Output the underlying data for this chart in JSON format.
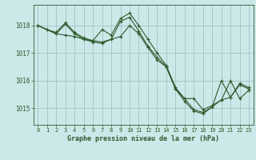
{
  "title": "Graphe pression niveau de la mer (hPa)",
  "background_color": "#cce8e8",
  "grid_color": "#9bbcbc",
  "line_color": "#2d5a2d",
  "xlim": [
    -0.5,
    23.5
  ],
  "ylim": [
    1014.4,
    1018.75
  ],
  "yticks": [
    1015,
    1016,
    1017,
    1018
  ],
  "xticks": [
    0,
    1,
    2,
    3,
    4,
    5,
    6,
    7,
    8,
    9,
    10,
    11,
    12,
    13,
    14,
    15,
    16,
    17,
    18,
    19,
    20,
    21,
    22,
    23
  ],
  "line1_x": [
    0,
    1,
    2,
    3,
    4,
    5,
    6,
    7,
    8,
    9,
    10,
    11,
    12,
    13,
    14,
    15,
    16,
    17,
    18,
    19,
    20,
    21,
    22,
    23
  ],
  "line1_y": [
    1018.0,
    1017.85,
    1017.75,
    1018.1,
    1017.75,
    1017.55,
    1017.45,
    1017.85,
    1017.65,
    1018.25,
    1018.45,
    1018.0,
    1017.5,
    1017.0,
    1016.55,
    1015.75,
    1015.35,
    1014.95,
    1014.85,
    1015.05,
    1016.0,
    1015.4,
    1015.9,
    1015.75
  ],
  "line2_x": [
    0,
    1,
    2,
    3,
    4,
    5,
    6,
    7,
    8,
    9,
    10,
    11,
    12,
    13,
    14,
    15,
    16,
    17,
    18,
    19,
    20,
    21,
    22,
    23
  ],
  "line2_y": [
    1018.0,
    1017.85,
    1017.7,
    1018.05,
    1017.7,
    1017.5,
    1017.4,
    1017.35,
    1017.5,
    1018.15,
    1018.3,
    1017.8,
    1017.25,
    1016.85,
    1016.5,
    1015.7,
    1015.25,
    1014.9,
    1014.8,
    1015.05,
    1015.3,
    1015.4,
    1015.85,
    1015.7
  ],
  "line3_x": [
    0,
    2,
    3,
    4,
    5,
    6,
    7,
    8,
    9,
    10,
    11,
    12,
    13,
    14,
    15,
    16,
    17,
    18,
    19,
    20,
    21,
    22,
    23
  ],
  "line3_y": [
    1018.0,
    1017.7,
    1017.65,
    1017.6,
    1017.5,
    1017.45,
    1017.4,
    1017.5,
    1017.6,
    1018.0,
    1017.7,
    1017.2,
    1016.75,
    1016.5,
    1015.7,
    1015.35,
    1015.35,
    1014.95,
    1015.1,
    1015.3,
    1016.0,
    1015.35,
    1015.65
  ]
}
